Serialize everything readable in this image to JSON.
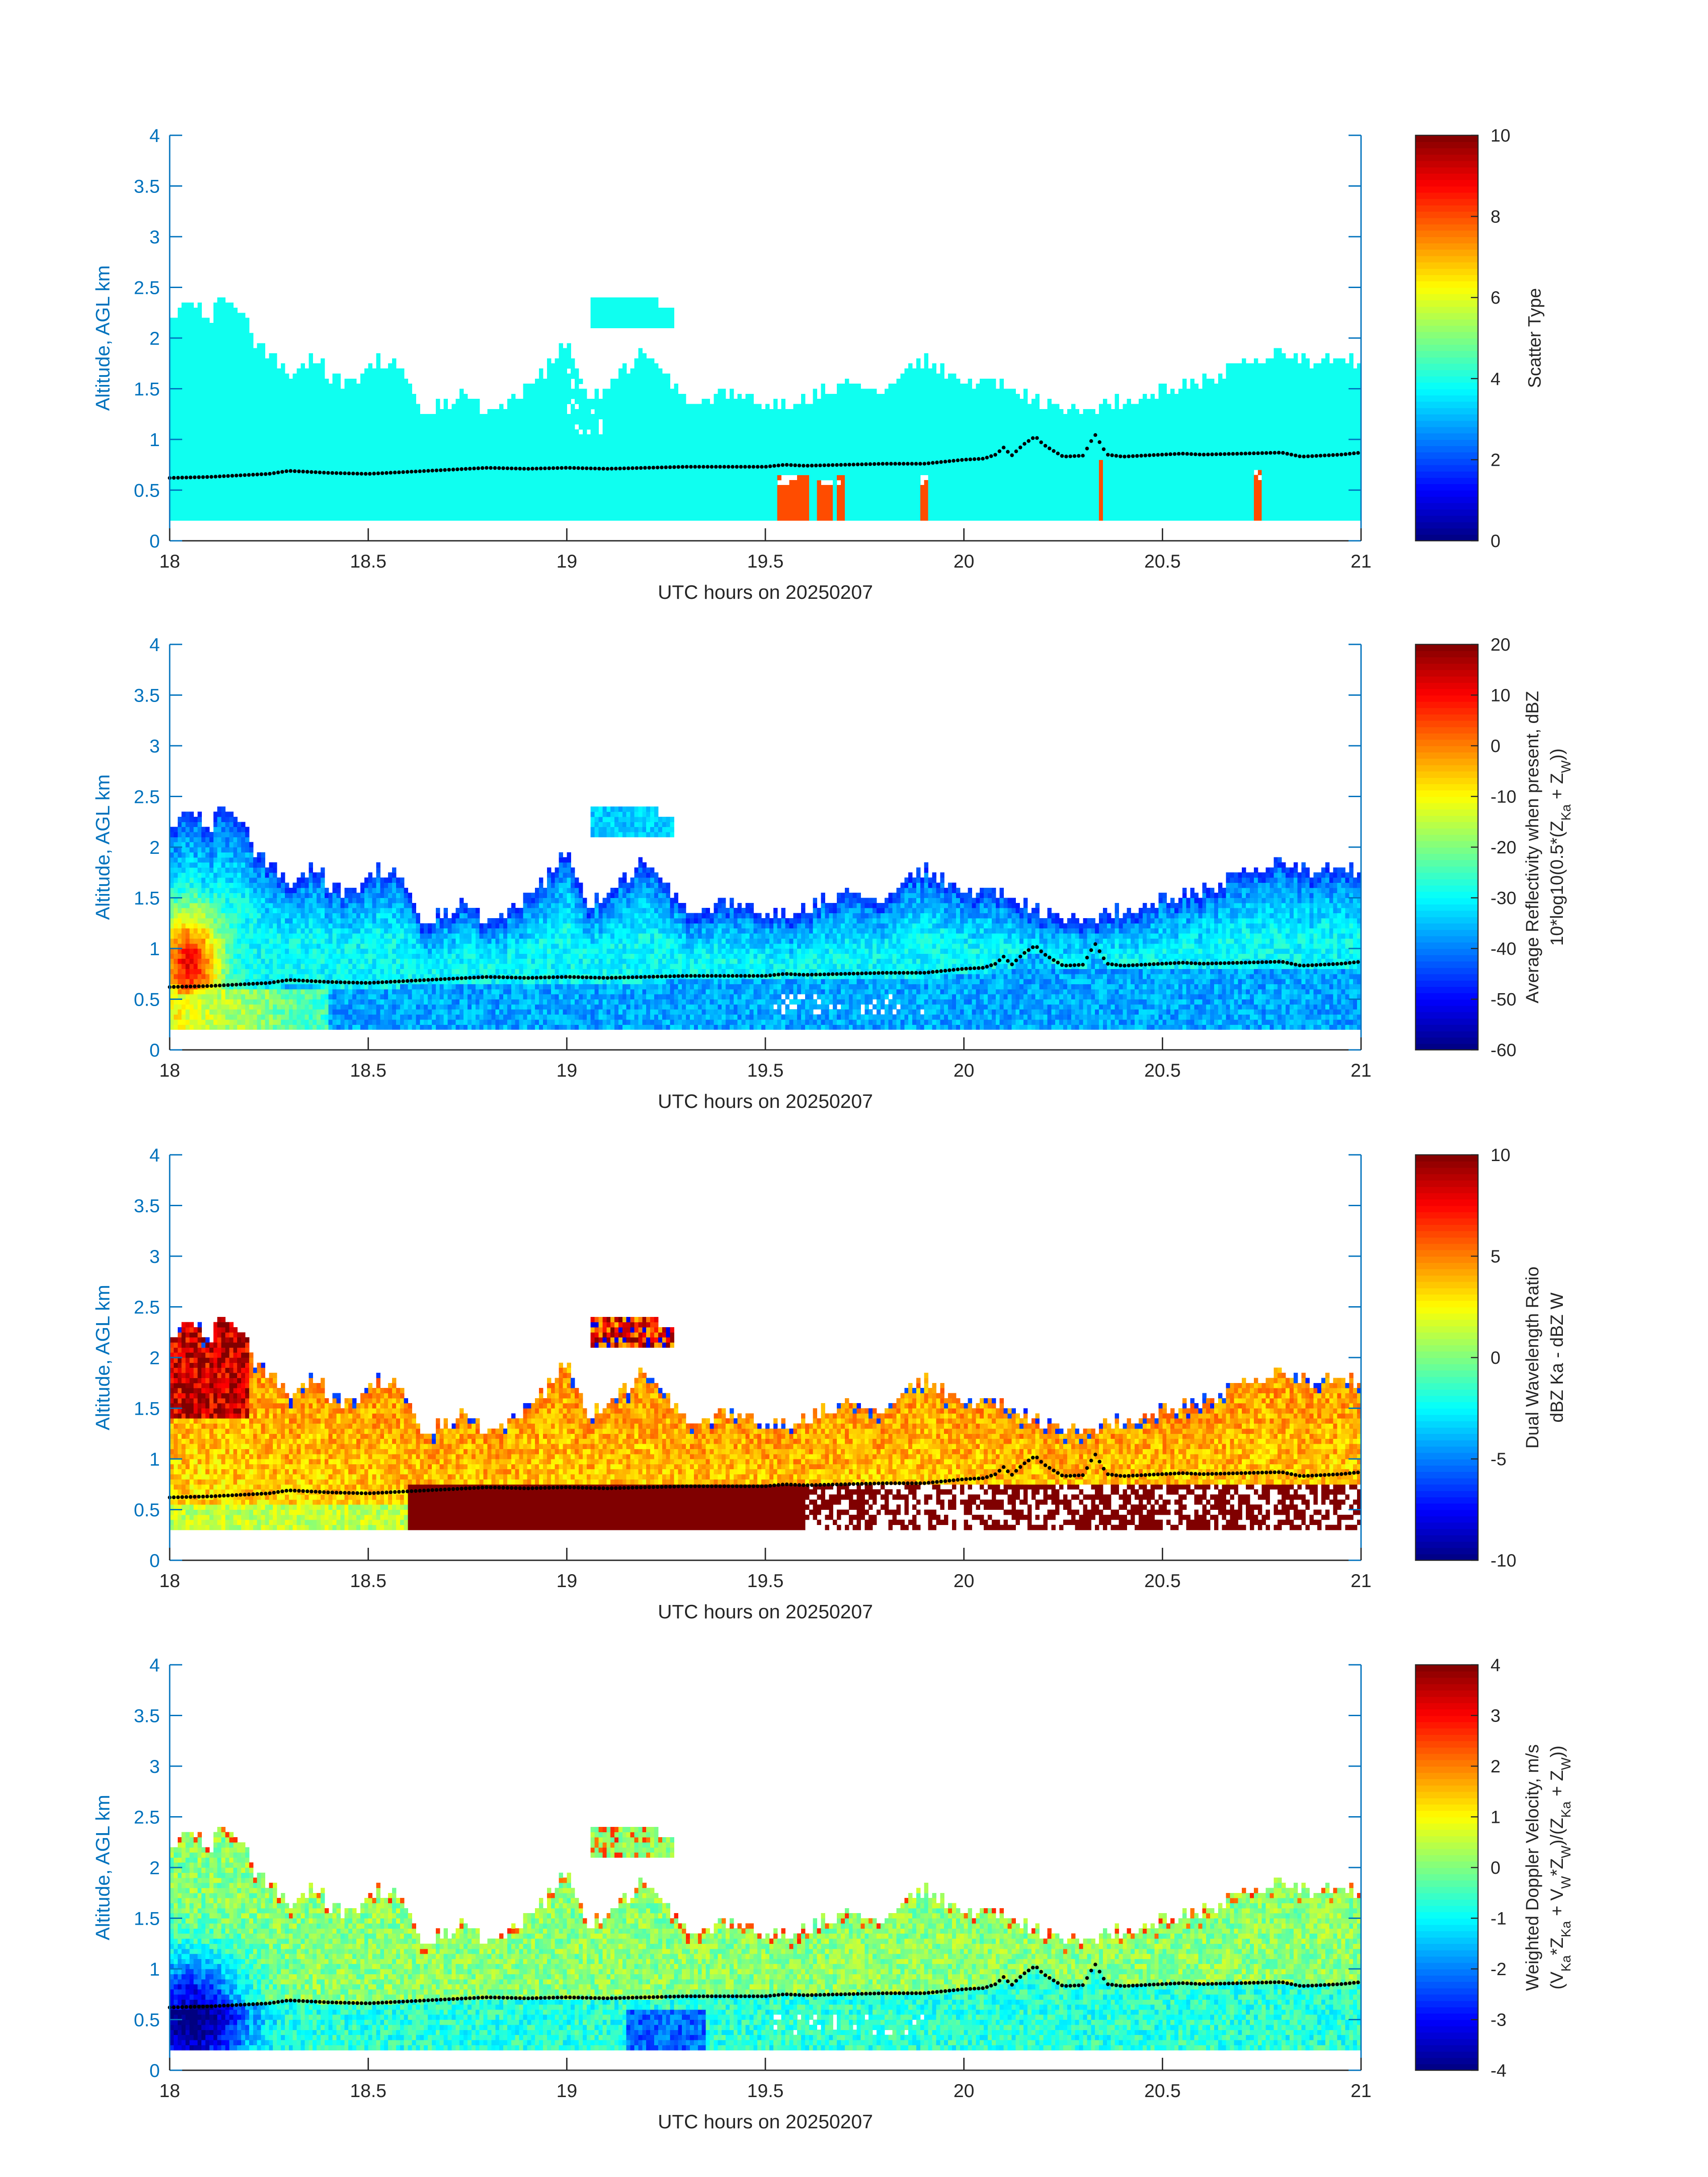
{
  "colors": {
    "axis": "#0072bd",
    "text": "#262626",
    "bg": "#ffffff"
  },
  "chart_data": [
    {
      "type": "heatmap",
      "id": "scatter-type",
      "xlabel": "UTC hours on 20250207",
      "ylabel": "Altitude, AGL km",
      "xlim": [
        18,
        21
      ],
      "ylim": [
        0,
        4
      ],
      "xticks": [
        18,
        18.5,
        19,
        19.5,
        20,
        20.5,
        21
      ],
      "yticks": [
        0,
        0.5,
        1,
        1.5,
        2,
        2.5,
        3,
        3.5,
        4
      ],
      "colorbar": {
        "label": "Scatter Type",
        "label2": "",
        "min": 0,
        "max": 10,
        "ticks": [
          0,
          2,
          4,
          6,
          8,
          10
        ]
      },
      "field": "scatter",
      "cloud_base_km": 0.2,
      "dominant_value": 3.9,
      "features": [
        "upper cloud patch 19.05-19.27 h at 2.1-2.4 km",
        "red columns (type ~8) at 19.53-19.6, 19.63-19.67, 19.68-19.7, 19.9, 20.34, 20.74 h"
      ]
    },
    {
      "type": "heatmap",
      "id": "reflectivity",
      "xlabel": "UTC hours on 20250207",
      "ylabel": "Altitude, AGL km",
      "xlim": [
        18,
        21
      ],
      "ylim": [
        0,
        4
      ],
      "xticks": [
        18,
        18.5,
        19,
        19.5,
        20,
        20.5,
        21
      ],
      "yticks": [
        0,
        0.5,
        1,
        1.5,
        2,
        2.5,
        3,
        3.5,
        4
      ],
      "colorbar": {
        "label": "Average Reflectivity when present, dBZ",
        "label2": "10*log10(0.5*(Z_Ka + Z_W))",
        "min": -60,
        "max": 20,
        "ticks": [
          -60,
          -50,
          -40,
          -30,
          -20,
          -10,
          0,
          10,
          20
        ]
      },
      "field": "reflectivity",
      "features": [
        "max ~10 dBZ near 18.05 h, 0.8 km",
        "cloud top values ~-45 dBZ",
        "boundary layer ~-35 dBZ"
      ]
    },
    {
      "type": "heatmap",
      "id": "dwr",
      "xlabel": "UTC hours on 20250207",
      "ylabel": "Altitude, AGL km",
      "xlim": [
        18,
        21
      ],
      "ylim": [
        0,
        4
      ],
      "xticks": [
        18,
        18.5,
        19,
        19.5,
        20,
        20.5,
        21
      ],
      "yticks": [
        0,
        0.5,
        1,
        1.5,
        2,
        2.5,
        3,
        3.5,
        4
      ],
      "colorbar": {
        "label": "Dual Wavelength Ratio",
        "label2": "dBZ Ka - dBZ W",
        "min": -10,
        "max": 10,
        "ticks": [
          -10,
          -5,
          0,
          5,
          10
        ]
      },
      "field": "dwr",
      "features": [
        "saturated ~10 dB below 0.7 km after 18.6 h",
        "~3 dB in main cloud layer"
      ]
    },
    {
      "type": "heatmap",
      "id": "doppler",
      "xlabel": "UTC hours on 20250207",
      "ylabel": "Altitude, AGL km",
      "xlim": [
        18,
        21
      ],
      "ylim": [
        0,
        4
      ],
      "xticks": [
        18,
        18.5,
        19,
        19.5,
        20,
        20.5,
        21
      ],
      "yticks": [
        0,
        0.5,
        1,
        1.5,
        2,
        2.5,
        3,
        3.5,
        4
      ],
      "colorbar": {
        "label": "Weighted Doppler Velocity, m/s",
        "label2": "(V_Ka*Z_Ka + V_W*Z_W)/(Z_Ka + Z_W))",
        "min": -4,
        "max": 4,
        "ticks": [
          -4,
          -3,
          -2,
          -1,
          0,
          1,
          2,
          3,
          4
        ]
      },
      "field": "doppler",
      "features": [
        "~-3.5 m/s near 18.05 h low levels",
        "~0 m/s in main layer"
      ]
    }
  ],
  "cloud_top_km": [
    [
      18.0,
      2.15
    ],
    [
      18.03,
      2.3
    ],
    [
      18.08,
      2.3
    ],
    [
      18.1,
      2.2
    ],
    [
      18.13,
      2.35
    ],
    [
      18.18,
      2.3
    ],
    [
      18.22,
      1.95
    ],
    [
      18.27,
      1.8
    ],
    [
      18.3,
      1.65
    ],
    [
      18.33,
      1.7
    ],
    [
      18.38,
      1.85
    ],
    [
      18.4,
      1.55
    ],
    [
      18.45,
      1.55
    ],
    [
      18.48,
      1.6
    ],
    [
      18.52,
      1.75
    ],
    [
      18.58,
      1.75
    ],
    [
      18.6,
      1.55
    ],
    [
      18.63,
      1.3
    ],
    [
      18.7,
      1.35
    ],
    [
      18.73,
      1.5
    ],
    [
      18.78,
      1.35
    ],
    [
      18.82,
      1.3
    ],
    [
      18.88,
      1.4
    ],
    [
      18.93,
      1.6
    ],
    [
      18.98,
      1.85
    ],
    [
      19.0,
      1.95
    ],
    [
      19.03,
      1.7
    ],
    [
      19.05,
      1.45
    ],
    [
      19.1,
      1.55
    ],
    [
      19.15,
      1.7
    ],
    [
      19.2,
      1.85
    ],
    [
      19.25,
      1.6
    ],
    [
      19.3,
      1.4
    ],
    [
      19.38,
      1.45
    ],
    [
      19.45,
      1.4
    ],
    [
      19.52,
      1.3
    ],
    [
      19.6,
      1.4
    ],
    [
      19.66,
      1.5
    ],
    [
      19.72,
      1.6
    ],
    [
      19.77,
      1.45
    ],
    [
      19.82,
      1.6
    ],
    [
      19.87,
      1.75
    ],
    [
      19.92,
      1.75
    ],
    [
      19.97,
      1.6
    ],
    [
      20.02,
      1.55
    ],
    [
      20.08,
      1.55
    ],
    [
      20.13,
      1.45
    ],
    [
      20.18,
      1.4
    ],
    [
      20.24,
      1.3
    ],
    [
      20.3,
      1.3
    ],
    [
      20.36,
      1.35
    ],
    [
      20.42,
      1.35
    ],
    [
      20.47,
      1.45
    ],
    [
      20.52,
      1.5
    ],
    [
      20.58,
      1.55
    ],
    [
      20.63,
      1.6
    ],
    [
      20.68,
      1.7
    ],
    [
      20.73,
      1.75
    ],
    [
      20.78,
      1.85
    ],
    [
      20.83,
      1.85
    ],
    [
      20.88,
      1.75
    ],
    [
      20.93,
      1.8
    ],
    [
      20.97,
      1.8
    ],
    [
      21.0,
      1.75
    ]
  ],
  "cloud_base_height_km": [
    [
      18.0,
      0.62
    ],
    [
      18.1,
      0.63
    ],
    [
      18.2,
      0.65
    ],
    [
      18.25,
      0.66
    ],
    [
      18.3,
      0.69
    ],
    [
      18.4,
      0.67
    ],
    [
      18.5,
      0.66
    ],
    [
      18.6,
      0.68
    ],
    [
      18.7,
      0.7
    ],
    [
      18.8,
      0.72
    ],
    [
      18.9,
      0.71
    ],
    [
      19.0,
      0.72
    ],
    [
      19.1,
      0.71
    ],
    [
      19.2,
      0.72
    ],
    [
      19.3,
      0.73
    ],
    [
      19.4,
      0.73
    ],
    [
      19.5,
      0.73
    ],
    [
      19.55,
      0.75
    ],
    [
      19.6,
      0.74
    ],
    [
      19.7,
      0.75
    ],
    [
      19.8,
      0.76
    ],
    [
      19.9,
      0.76
    ],
    [
      19.95,
      0.78
    ],
    [
      20.0,
      0.8
    ],
    [
      20.05,
      0.81
    ],
    [
      20.08,
      0.85
    ],
    [
      20.1,
      0.92
    ],
    [
      20.12,
      0.84
    ],
    [
      20.15,
      0.95
    ],
    [
      20.18,
      1.03
    ],
    [
      20.2,
      0.95
    ],
    [
      20.22,
      0.9
    ],
    [
      20.25,
      0.83
    ],
    [
      20.3,
      0.84
    ],
    [
      20.33,
      1.05
    ],
    [
      20.36,
      0.85
    ],
    [
      20.4,
      0.83
    ],
    [
      20.45,
      0.84
    ],
    [
      20.5,
      0.85
    ],
    [
      20.55,
      0.86
    ],
    [
      20.6,
      0.85
    ],
    [
      20.7,
      0.86
    ],
    [
      20.8,
      0.87
    ],
    [
      20.85,
      0.83
    ],
    [
      20.9,
      0.84
    ],
    [
      20.95,
      0.85
    ],
    [
      21.0,
      0.87
    ]
  ]
}
